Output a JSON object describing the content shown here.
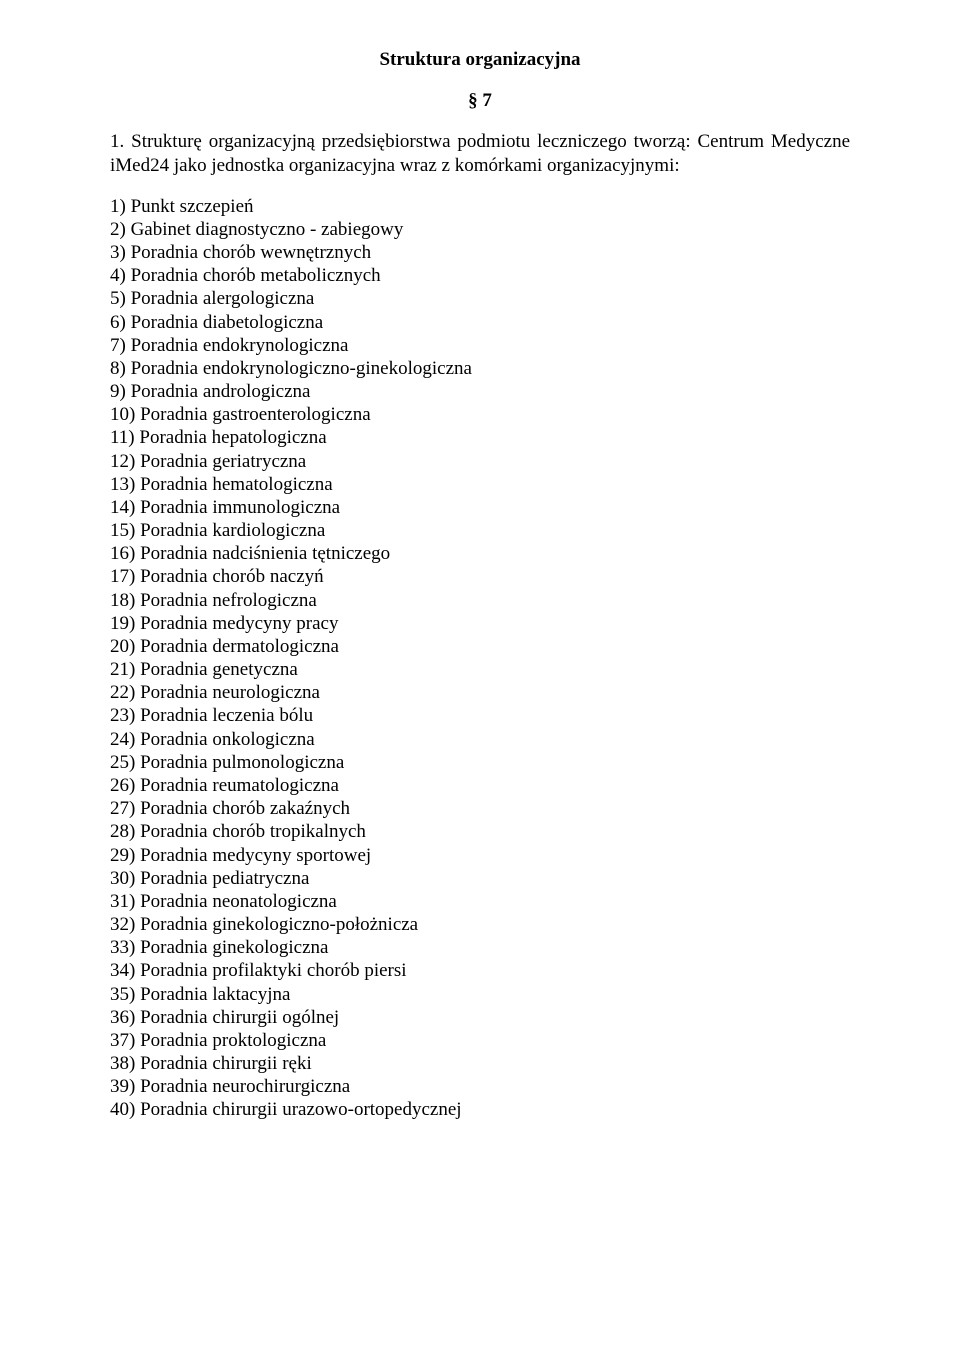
{
  "title": "Struktura organizacyjna",
  "section_mark": "§ 7",
  "intro": "1. Strukturę organizacyjną przedsiębiorstwa podmiotu leczniczego tworzą: Centrum Medyczne iMed24 jako jednostka organizacyjna wraz z komórkami organizacyjnymi:",
  "items": [
    "1) Punkt szczepień",
    "2) Gabinet diagnostyczno - zabiegowy",
    "3) Poradnia chorób wewnętrznych",
    "4) Poradnia chorób metabolicznych",
    "5) Poradnia alergologiczna",
    "6) Poradnia diabetologiczna",
    "7) Poradnia endokrynologiczna",
    "8) Poradnia endokrynologiczno-ginekologiczna",
    "9) Poradnia andrologiczna",
    "10) Poradnia gastroenterologiczna",
    "11) Poradnia hepatologiczna",
    "12) Poradnia geriatryczna",
    "13) Poradnia hematologiczna",
    "14) Poradnia immunologiczna",
    "15) Poradnia kardiologiczna",
    "16) Poradnia nadciśnienia tętniczego",
    "17) Poradnia chorób naczyń",
    "18) Poradnia nefrologiczna",
    "19) Poradnia medycyny pracy",
    "20) Poradnia dermatologiczna",
    "21) Poradnia genetyczna",
    "22) Poradnia neurologiczna",
    "23) Poradnia leczenia bólu",
    "24) Poradnia onkologiczna",
    "25) Poradnia pulmonologiczna",
    "26) Poradnia reumatologiczna",
    "27) Poradnia chorób zakaźnych",
    "28) Poradnia chorób tropikalnych",
    "29) Poradnia medycyny sportowej",
    "30) Poradnia pediatryczna",
    "31) Poradnia neonatologiczna",
    "32) Poradnia ginekologiczno-położnicza",
    "33) Poradnia ginekologiczna",
    "34) Poradnia profilaktyki chorób piersi",
    "35) Poradnia laktacyjna",
    "36) Poradnia chirurgii ogólnej",
    "37) Poradnia proktologiczna",
    "38) Poradnia chirurgii ręki",
    "39) Poradnia neurochirurgiczna",
    "40) Poradnia chirurgii urazowo-ortopedycznej"
  ]
}
